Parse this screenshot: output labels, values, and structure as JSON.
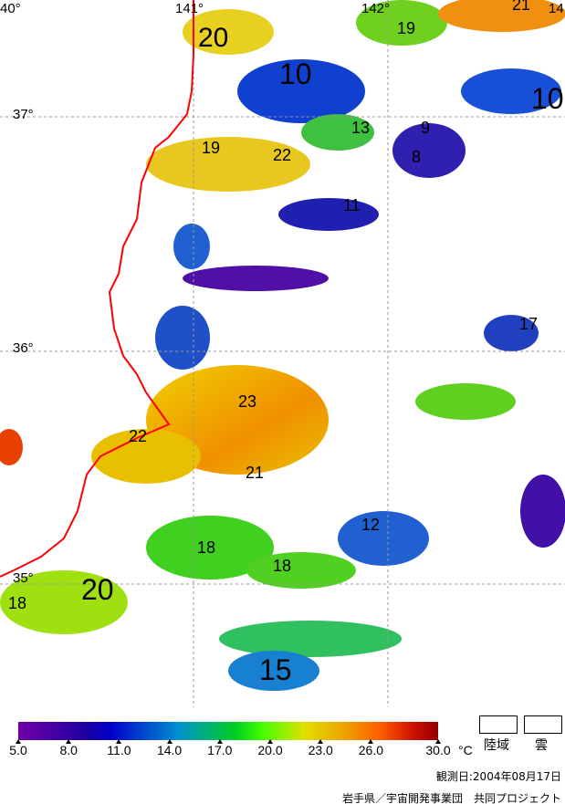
{
  "map": {
    "lon_labels": [
      "40°",
      "141°",
      "142°",
      "14"
    ],
    "lat_labels": [
      "37°",
      "36°",
      "35°"
    ],
    "contour_labels": [
      "20",
      "19",
      "21",
      "10",
      "10",
      "13",
      "19",
      "22",
      "9",
      "8",
      "11",
      "17",
      "23",
      "22",
      "21",
      "18",
      "18",
      "12",
      "20",
      "18",
      "15"
    ]
  },
  "legend": {
    "ticks": [
      "5.0",
      "8.0",
      "11.0",
      "14.0",
      "17.0",
      "20.0",
      "23.0",
      "26.0",
      "30.0"
    ],
    "unit": "°C",
    "land_label": "陸域",
    "cloud_label": "雲",
    "colors": [
      "#6a00a8",
      "#0010c8",
      "#00c030",
      "#e0e000",
      "#ff7000",
      "#900000"
    ]
  },
  "footer": {
    "date": "観測日:2004年08月17日",
    "credit": "岩手県／宇宙開発事業団　共同プロジェクト"
  }
}
